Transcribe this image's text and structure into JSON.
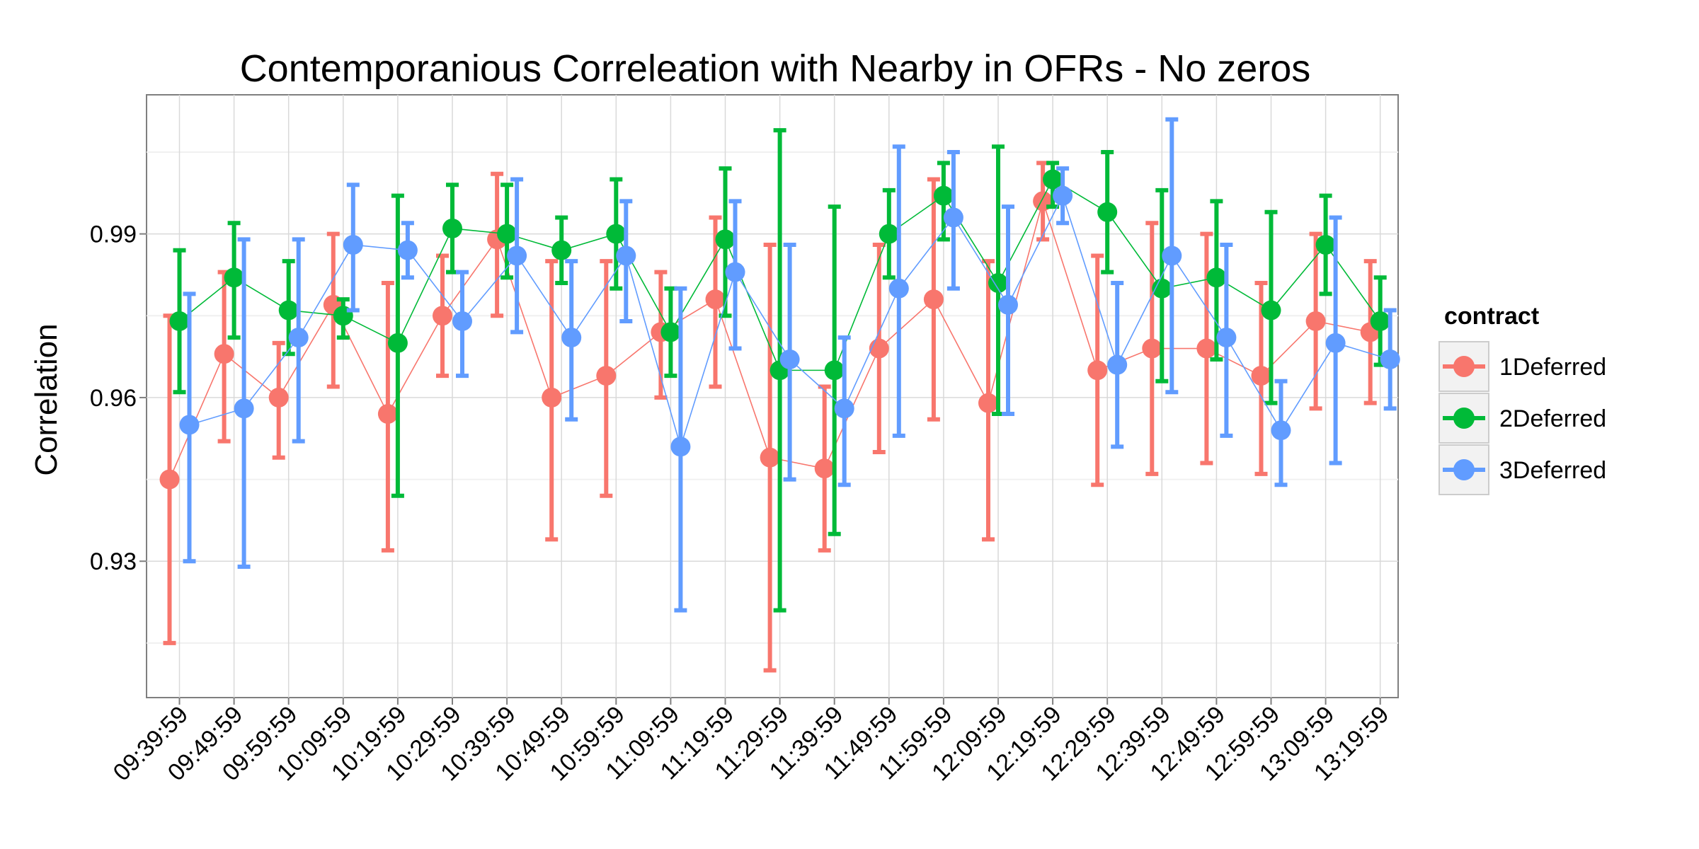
{
  "chart_data": {
    "type": "line",
    "title": "Contemporanious Correleation with Nearby in OFRs - No zeros",
    "xlabel": "",
    "ylabel": "Correlation",
    "categories": [
      "09:39:59",
      "09:49:59",
      "09:59:59",
      "10:09:59",
      "10:19:59",
      "10:29:59",
      "10:39:59",
      "10:49:59",
      "10:59:59",
      "11:09:59",
      "11:19:59",
      "11:29:59",
      "11:39:59",
      "11:49:59",
      "11:59:59",
      "12:09:59",
      "12:19:59",
      "12:29:59",
      "12:39:59",
      "12:49:59",
      "12:59:59",
      "13:09:59",
      "13:19:59"
    ],
    "ylim": [
      0.905,
      1.0155
    ],
    "yticks": [
      "0.93",
      "0.96",
      "0.99"
    ],
    "grid": true,
    "legend": {
      "title": "contract",
      "position": "right"
    },
    "series": [
      {
        "name": "1Deferred",
        "color": "#F8766D",
        "values": [
          0.945,
          0.968,
          0.96,
          0.977,
          0.957,
          0.975,
          0.989,
          0.96,
          0.964,
          0.972,
          0.978,
          0.949,
          0.947,
          0.969,
          0.978,
          0.959,
          0.996,
          0.965,
          0.969,
          0.969,
          0.964,
          0.974,
          0.972
        ],
        "lower": [
          0.915,
          0.952,
          0.949,
          0.962,
          0.932,
          0.964,
          0.975,
          0.934,
          0.942,
          0.96,
          0.962,
          0.91,
          0.932,
          0.95,
          0.956,
          0.934,
          0.989,
          0.944,
          0.946,
          0.948,
          0.946,
          0.958,
          0.959
        ],
        "upper": [
          0.975,
          0.983,
          0.97,
          0.99,
          0.981,
          0.986,
          1.001,
          0.985,
          0.985,
          0.983,
          0.993,
          0.988,
          0.962,
          0.988,
          1.0,
          0.985,
          1.003,
          0.986,
          0.992,
          0.99,
          0.981,
          0.99,
          0.985
        ]
      },
      {
        "name": "2Deferred",
        "color": "#00BA38",
        "values": [
          0.974,
          0.982,
          0.976,
          0.975,
          0.97,
          0.991,
          0.99,
          0.987,
          0.99,
          0.972,
          0.989,
          0.965,
          0.965,
          0.99,
          0.997,
          0.981,
          1.0,
          0.994,
          0.98,
          0.982,
          0.976,
          0.988,
          0.974
        ],
        "lower": [
          0.961,
          0.971,
          0.968,
          0.971,
          0.942,
          0.983,
          0.982,
          0.981,
          0.98,
          0.964,
          0.975,
          0.921,
          0.935,
          0.982,
          0.989,
          0.957,
          0.995,
          0.983,
          0.963,
          0.967,
          0.959,
          0.979,
          0.966
        ],
        "upper": [
          0.987,
          0.992,
          0.985,
          0.978,
          0.997,
          0.999,
          0.999,
          0.993,
          1.0,
          0.98,
          1.002,
          1.009,
          0.995,
          0.998,
          1.003,
          1.006,
          1.003,
          1.005,
          0.998,
          0.996,
          0.994,
          0.997,
          0.982
        ]
      },
      {
        "name": "3Deferred",
        "color": "#619CFF",
        "values": [
          0.955,
          0.958,
          0.971,
          0.988,
          0.987,
          0.974,
          0.986,
          0.971,
          0.986,
          0.951,
          0.983,
          0.967,
          0.958,
          0.98,
          0.993,
          0.977,
          0.997,
          0.966,
          0.986,
          0.971,
          0.954,
          0.97,
          0.967
        ],
        "lower": [
          0.93,
          0.929,
          0.952,
          0.976,
          0.982,
          0.964,
          0.972,
          0.956,
          0.974,
          0.921,
          0.969,
          0.945,
          0.944,
          0.953,
          0.98,
          0.957,
          0.992,
          0.951,
          0.961,
          0.953,
          0.944,
          0.948,
          0.958
        ],
        "upper": [
          0.979,
          0.989,
          0.989,
          0.999,
          0.992,
          0.983,
          1.0,
          0.985,
          0.996,
          0.98,
          0.996,
          0.988,
          0.971,
          1.006,
          1.005,
          0.995,
          1.002,
          0.981,
          1.011,
          0.988,
          0.963,
          0.993,
          0.976
        ]
      }
    ]
  }
}
